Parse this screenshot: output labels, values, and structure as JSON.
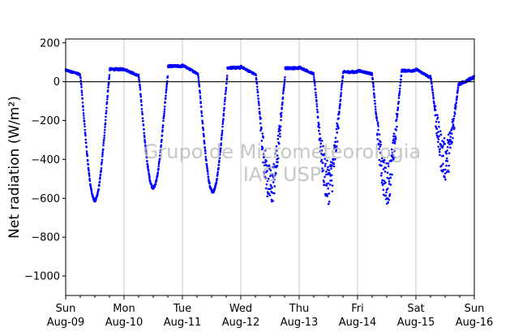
{
  "chart_data": {
    "type": "scatter",
    "title": "",
    "ylabel": "Net radiation (W/m²)",
    "xlabel": "",
    "xlim": [
      0,
      7
    ],
    "ylim": [
      -1100,
      220
    ],
    "y_ticks": [
      200,
      0,
      -200,
      -400,
      -600,
      -800,
      -1000
    ],
    "x_ticks": [
      {
        "day": 0,
        "line1": "Sun",
        "line2": "Aug-09"
      },
      {
        "day": 1,
        "line1": "Mon",
        "line2": "Aug-10"
      },
      {
        "day": 2,
        "line1": "Tue",
        "line2": "Aug-11"
      },
      {
        "day": 3,
        "line1": "Wed",
        "line2": "Aug-12"
      },
      {
        "day": 4,
        "line1": "Thu",
        "line2": "Aug-13"
      },
      {
        "day": 5,
        "line1": "Fri",
        "line2": "Aug-14"
      },
      {
        "day": 6,
        "line1": "Sat",
        "line2": "Aug-15"
      },
      {
        "day": 7,
        "line1": "Sun",
        "line2": "Aug-16"
      }
    ],
    "vertical_grid": true,
    "zero_line": true,
    "series_color": "#0000ff",
    "watermark": [
      "Grupo de Micrometeorologia",
      "IAG USP"
    ],
    "days": [
      {
        "night_start": 60,
        "night_end": 38,
        "min": -610,
        "noon_shift": 0.0,
        "day_level": 72
      },
      {
        "night_start": 65,
        "night_end": 30,
        "min": -545,
        "noon_shift": 0.0,
        "day_level": 88
      },
      {
        "night_start": 85,
        "night_end": 40,
        "min": -565,
        "noon_shift": 0.02,
        "day_level": 80
      },
      {
        "night_start": 78,
        "night_end": 35,
        "min": -540,
        "noon_shift": 0.01,
        "day_level": 78
      },
      {
        "night_start": 75,
        "night_end": 40,
        "min": -520,
        "noon_shift": 0.0,
        "day_level": 58
      },
      {
        "night_start": 58,
        "night_end": 40,
        "min": -520,
        "noon_shift": 0.0,
        "day_level": 65
      },
      {
        "night_start": 65,
        "night_end": 20,
        "min": -400,
        "noon_shift": 0.0,
        "day_level": 55
      }
    ]
  }
}
